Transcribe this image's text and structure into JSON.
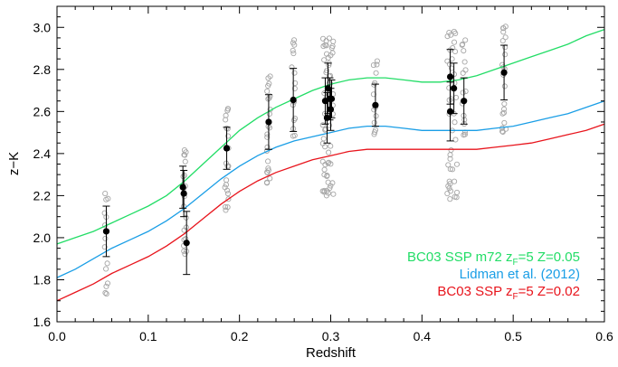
{
  "chart_data": {
    "type": "scatter",
    "xlabel": "Redshift",
    "ylabel": "z−K",
    "xlim": [
      0.0,
      0.6
    ],
    "ylim": [
      1.6,
      3.1
    ],
    "x_ticks": [
      0.0,
      0.1,
      0.2,
      0.3,
      0.4,
      0.5,
      0.6
    ],
    "x_tick_labels": [
      "0.0",
      "0.1",
      "0.2",
      "0.3",
      "0.4",
      "0.5",
      "0.6"
    ],
    "y_ticks": [
      1.6,
      1.8,
      2.0,
      2.2,
      2.4,
      2.6,
      2.8,
      3.0
    ],
    "y_tick_labels": [
      "1.6",
      "1.8",
      "2.0",
      "2.2",
      "2.4",
      "2.6",
      "2.8",
      "3.0"
    ],
    "grid": false,
    "legend_position": "bottom-right",
    "model_curves": [
      {
        "legend_parts": [
          {
            "text": "BC03 SSP m72 z",
            "sub": false
          },
          {
            "text": "F",
            "sub": true
          },
          {
            "text": "=5 Z=0.05",
            "sub": false
          }
        ],
        "color": "#22dd66",
        "x": [
          0.0,
          0.02,
          0.04,
          0.06,
          0.08,
          0.1,
          0.12,
          0.14,
          0.16,
          0.18,
          0.2,
          0.22,
          0.24,
          0.26,
          0.28,
          0.3,
          0.32,
          0.34,
          0.36,
          0.38,
          0.4,
          0.42,
          0.44,
          0.46,
          0.48,
          0.5,
          0.52,
          0.54,
          0.56,
          0.58,
          0.6
        ],
        "y": [
          1.97,
          2.0,
          2.03,
          2.07,
          2.11,
          2.15,
          2.2,
          2.27,
          2.35,
          2.43,
          2.51,
          2.57,
          2.62,
          2.66,
          2.7,
          2.73,
          2.75,
          2.76,
          2.76,
          2.75,
          2.74,
          2.74,
          2.75,
          2.77,
          2.8,
          2.83,
          2.86,
          2.89,
          2.92,
          2.96,
          2.99
        ]
      },
      {
        "legend_parts": [
          {
            "text": "Lidman et al. (2012)",
            "sub": false
          }
        ],
        "color": "#1a9ee6",
        "x": [
          0.0,
          0.02,
          0.04,
          0.06,
          0.08,
          0.1,
          0.12,
          0.14,
          0.16,
          0.18,
          0.2,
          0.22,
          0.24,
          0.26,
          0.28,
          0.3,
          0.32,
          0.34,
          0.36,
          0.38,
          0.4,
          0.42,
          0.44,
          0.46,
          0.48,
          0.5,
          0.52,
          0.54,
          0.56,
          0.58,
          0.6
        ],
        "y": [
          1.81,
          1.85,
          1.9,
          1.95,
          1.99,
          2.03,
          2.08,
          2.14,
          2.21,
          2.28,
          2.34,
          2.39,
          2.43,
          2.46,
          2.48,
          2.5,
          2.52,
          2.53,
          2.53,
          2.52,
          2.51,
          2.51,
          2.51,
          2.51,
          2.52,
          2.53,
          2.55,
          2.57,
          2.59,
          2.62,
          2.65
        ]
      },
      {
        "legend_parts": [
          {
            "text": "BC03 SSP z",
            "sub": false
          },
          {
            "text": "F",
            "sub": true
          },
          {
            "text": "=5 Z=0.02",
            "sub": false
          }
        ],
        "color": "#e8141c",
        "x": [
          0.0,
          0.02,
          0.04,
          0.06,
          0.08,
          0.1,
          0.12,
          0.14,
          0.16,
          0.18,
          0.2,
          0.22,
          0.24,
          0.26,
          0.28,
          0.3,
          0.32,
          0.34,
          0.36,
          0.38,
          0.4,
          0.42,
          0.44,
          0.46,
          0.48,
          0.5,
          0.52,
          0.54,
          0.56,
          0.58,
          0.6
        ],
        "y": [
          1.7,
          1.74,
          1.78,
          1.83,
          1.87,
          1.91,
          1.96,
          2.02,
          2.09,
          2.16,
          2.22,
          2.27,
          2.31,
          2.34,
          2.37,
          2.39,
          2.41,
          2.42,
          2.42,
          2.42,
          2.42,
          2.42,
          2.42,
          2.42,
          2.43,
          2.44,
          2.45,
          2.47,
          2.49,
          2.51,
          2.54
        ]
      }
    ],
    "cluster_means": {
      "color": "#000000",
      "points": [
        {
          "x": 0.054,
          "y": 2.03,
          "err": 0.12
        },
        {
          "x": 0.138,
          "y": 2.24,
          "err": 0.1
        },
        {
          "x": 0.139,
          "y": 2.21,
          "err": 0.11
        },
        {
          "x": 0.142,
          "y": 1.975,
          "err": 0.15
        },
        {
          "x": 0.186,
          "y": 2.425,
          "err": 0.1
        },
        {
          "x": 0.232,
          "y": 2.55,
          "err": 0.13
        },
        {
          "x": 0.259,
          "y": 2.655,
          "err": 0.15
        },
        {
          "x": 0.294,
          "y": 2.65,
          "err": 0.11
        },
        {
          "x": 0.296,
          "y": 2.57,
          "err": 0.12
        },
        {
          "x": 0.297,
          "y": 2.71,
          "err": 0.12
        },
        {
          "x": 0.299,
          "y": 2.66,
          "err": 0.1
        },
        {
          "x": 0.3,
          "y": 2.61,
          "err": 0.1
        },
        {
          "x": 0.301,
          "y": 2.66,
          "err": 0.09
        },
        {
          "x": 0.349,
          "y": 2.63,
          "err": 0.1
        },
        {
          "x": 0.431,
          "y": 2.765,
          "err": 0.13
        },
        {
          "x": 0.431,
          "y": 2.6,
          "err": 0.14
        },
        {
          "x": 0.435,
          "y": 2.71,
          "err": 0.12
        },
        {
          "x": 0.446,
          "y": 2.65,
          "err": 0.11
        },
        {
          "x": 0.49,
          "y": 2.785,
          "err": 0.13
        }
      ]
    },
    "galaxies": {
      "color": "#a6a6a6",
      "groups": [
        {
          "x": 0.054,
          "ymin": 1.73,
          "ymax": 2.21,
          "n": 14
        },
        {
          "x": 0.14,
          "ymin": 1.92,
          "ymax": 2.42,
          "n": 20
        },
        {
          "x": 0.186,
          "ymin": 2.13,
          "ymax": 2.62,
          "n": 22
        },
        {
          "x": 0.232,
          "ymin": 2.26,
          "ymax": 2.77,
          "n": 24
        },
        {
          "x": 0.259,
          "ymin": 2.48,
          "ymax": 2.94,
          "n": 16
        },
        {
          "x": 0.297,
          "ymin": 2.2,
          "ymax": 2.95,
          "n": 60
        },
        {
          "x": 0.349,
          "ymin": 2.49,
          "ymax": 2.84,
          "n": 14
        },
        {
          "x": 0.433,
          "ymin": 2.18,
          "ymax": 2.98,
          "n": 44
        },
        {
          "x": 0.446,
          "ymin": 2.48,
          "ymax": 2.94,
          "n": 16
        },
        {
          "x": 0.49,
          "ymin": 2.5,
          "ymax": 3.01,
          "n": 22
        }
      ]
    }
  }
}
